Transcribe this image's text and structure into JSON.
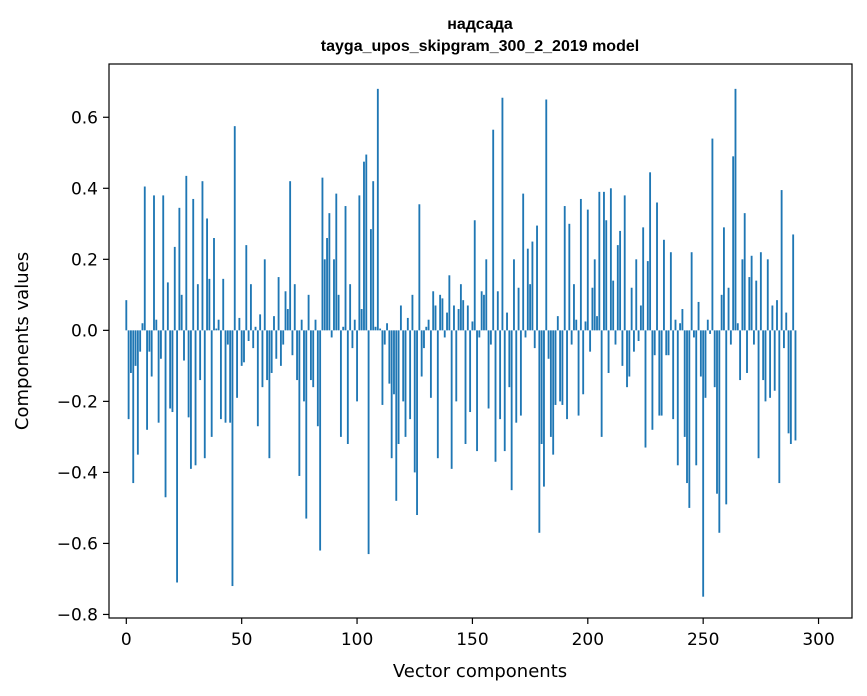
{
  "chart_data": {
    "type": "bar",
    "title": "надсада",
    "subtitle": "tayga_upos_skipgram_300_2_2019 model",
    "xlabel": "Vector components",
    "ylabel": "Components values",
    "xlim": [
      -7.5,
      314.5
    ],
    "ylim": [
      -0.81,
      0.75
    ],
    "xticks": [
      0,
      50,
      100,
      150,
      200,
      250,
      300
    ],
    "xtick_labels": [
      "0",
      "50",
      "100",
      "150",
      "200",
      "250",
      "300"
    ],
    "yticks": [
      -0.8,
      -0.6,
      -0.4,
      -0.2,
      0.0,
      0.2,
      0.4,
      0.6
    ],
    "ytick_labels": [
      "−0.8",
      "−0.6",
      "−0.4",
      "−0.2",
      "0.0",
      "0.2",
      "0.4",
      "0.6"
    ],
    "bar_color": "#1f77b4",
    "x": "0..299",
    "values": [
      0.085,
      -0.25,
      -0.12,
      -0.43,
      -0.1,
      -0.35,
      -0.06,
      0.02,
      0.405,
      -0.28,
      -0.06,
      -0.13,
      0.38,
      0.03,
      -0.26,
      -0.08,
      0.38,
      -0.47,
      0.135,
      -0.22,
      -0.23,
      0.235,
      -0.71,
      0.345,
      0.1,
      -0.085,
      0.435,
      -0.245,
      -0.39,
      0.37,
      -0.38,
      0.13,
      -0.14,
      0.42,
      -0.36,
      0.315,
      0.145,
      -0.3,
      0.26,
      0.005,
      0.03,
      -0.25,
      0.145,
      -0.26,
      -0.04,
      -0.26,
      -0.72,
      0.575,
      -0.19,
      0.035,
      -0.1,
      -0.09,
      0.24,
      -0.03,
      0.13,
      -0.05,
      0.01,
      -0.27,
      0.045,
      -0.16,
      0.2,
      -0.14,
      -0.36,
      -0.12,
      0.04,
      -0.08,
      0.15,
      -0.1,
      -0.04,
      0.11,
      0.06,
      0.42,
      -0.07,
      0.13,
      -0.14,
      -0.41,
      0.03,
      -0.2,
      -0.53,
      0.1,
      -0.14,
      -0.16,
      0.03,
      -0.27,
      -0.62,
      0.43,
      0.2,
      0.26,
      0.33,
      -0.02,
      0.2,
      0.385,
      0.1,
      -0.3,
      0.01,
      0.35,
      -0.32,
      0.13,
      -0.05,
      0.03,
      -0.2,
      0.38,
      0.06,
      0.475,
      0.495,
      -0.63,
      0.285,
      0.42,
      0.01,
      0.68,
      0.005,
      -0.21,
      -0.04,
      0.02,
      -0.15,
      -0.36,
      -0.18,
      -0.48,
      -0.32,
      0.07,
      -0.2,
      -0.3,
      0.035,
      -0.25,
      0.1,
      -0.4,
      -0.52,
      0.355,
      -0.13,
      -0.05,
      0.01,
      0.03,
      -0.19,
      0.11,
      0.07,
      -0.36,
      0.1,
      0.09,
      -0.02,
      0.05,
      0.155,
      -0.39,
      0.07,
      -0.2,
      0.06,
      0.13,
      0.085,
      -0.32,
      0.07,
      -0.23,
      0.025,
      0.31,
      -0.34,
      -0.02,
      0.11,
      0.1,
      0.2,
      -0.22,
      -0.04,
      0.565,
      -0.37,
      0.11,
      -0.25,
      0.655,
      -0.34,
      0.05,
      -0.16,
      -0.45,
      0.2,
      -0.26,
      0.12,
      -0.24,
      0.385,
      -0.02,
      0.23,
      0.13,
      0.25,
      -0.05,
      0.295,
      -0.57,
      -0.32,
      -0.44,
      0.65,
      -0.08,
      -0.3,
      -0.35,
      -0.21,
      0.04,
      -0.2,
      -0.21,
      0.35,
      -0.25,
      0.3,
      -0.04,
      0.13,
      0.03,
      -0.24,
      0.37,
      -0.18,
      0.025,
      0.34,
      -0.06,
      0.12,
      0.2,
      0.04,
      0.39,
      -0.3,
      0.39,
      0.31,
      -0.12,
      0.4,
      0.14,
      -0.04,
      0.24,
      0.28,
      -0.1,
      0.38,
      -0.16,
      -0.13,
      0.12,
      -0.06,
      0.2,
      -0.03,
      0.07,
      0.29,
      -0.33,
      0.195,
      0.445,
      -0.28,
      -0.07,
      0.36,
      -0.24,
      -0.24,
      0.255,
      -0.07,
      -0.07,
      0.22,
      -0.25,
      0.03,
      -0.38,
      0.02,
      0.06,
      -0.3,
      -0.43,
      -0.5,
      0.22,
      -0.02,
      -0.38,
      0.08,
      -0.13,
      -0.75,
      -0.19,
      0.03,
      -0.01,
      0.54,
      -0.16,
      -0.46,
      -0.57,
      0.1,
      0.29,
      -0.49,
      0.12,
      -0.04,
      0.49,
      0.68,
      0.02,
      -0.14,
      0.2,
      0.33,
      -0.12,
      0.15,
      0.21,
      -0.04,
      0.14,
      -0.36,
      0.22,
      -0.14,
      -0.2,
      0.2,
      -0.19,
      0.07,
      -0.17,
      0.085,
      -0.43,
      0.395,
      -0.05,
      0.05,
      -0.29,
      -0.32,
      0.27,
      -0.31
    ]
  }
}
